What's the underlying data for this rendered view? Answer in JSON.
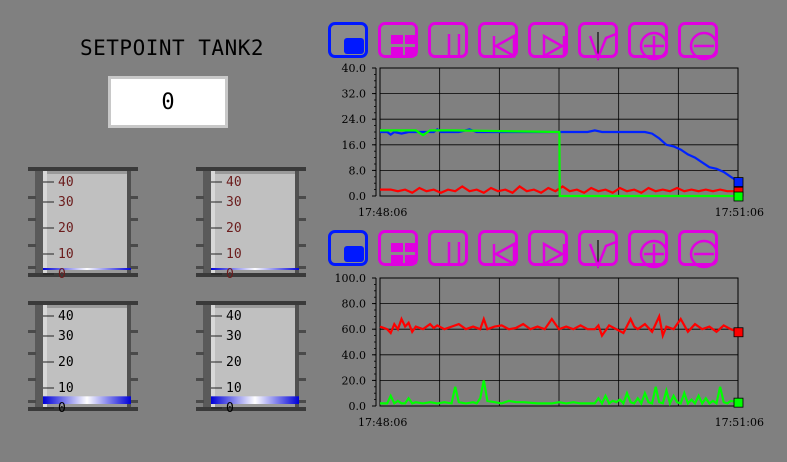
{
  "setpoint": {
    "title": "SETPOINT TANK2",
    "value": "0"
  },
  "tanks": [
    {
      "id": "tank-1",
      "labels": [
        "40",
        "30",
        "20",
        "10",
        "0"
      ],
      "level": 0.02
    },
    {
      "id": "tank-2",
      "labels": [
        "40",
        "30",
        "20",
        "10",
        "0"
      ],
      "level": 0.02
    },
    {
      "id": "tank-3",
      "labels": [
        "40",
        "30",
        "20",
        "10",
        "0"
      ],
      "level": 0.08
    },
    {
      "id": "tank-4",
      "labels": [
        "40",
        "30",
        "20",
        "10",
        "0"
      ],
      "level": 0.08
    }
  ],
  "toolbar_icons": [
    "stop-icon",
    "grid-icon",
    "pause-icon",
    "skip-back-icon",
    "skip-forward-icon",
    "cursor-icon",
    "zoom-in-icon",
    "zoom-out-icon"
  ],
  "colors": {
    "magenta": "#e000e0",
    "blue": "#0018ff",
    "red": "#ff0000",
    "green": "#00ff00",
    "trend_blue": "#0022ff"
  },
  "chart_data": [
    {
      "type": "line",
      "ylim": [
        0,
        40
      ],
      "yticks": [
        "40.0",
        "32.0",
        "24.0",
        "16.0",
        "8.0",
        "0.0"
      ],
      "x_start": "17:48:06",
      "x_end": "17:51:06",
      "series": [
        {
          "color": "#0022ff",
          "x": [
            0,
            2,
            3,
            4,
            6,
            8,
            9,
            10,
            12,
            13,
            14,
            15,
            16,
            17,
            18,
            20,
            22,
            25,
            27,
            30,
            33,
            36,
            39,
            40,
            42,
            45,
            47,
            50,
            52,
            55,
            58,
            60,
            62,
            64,
            66,
            68,
            70,
            72,
            74,
            76,
            78,
            80,
            82,
            84,
            86,
            88,
            90,
            92,
            94,
            96,
            98,
            100
          ],
          "y": [
            20,
            20,
            19.2,
            20,
            19.5,
            20,
            20,
            20,
            20,
            20,
            20,
            20,
            20.8,
            20,
            20,
            20,
            20,
            20.8,
            20,
            20,
            20,
            20,
            20,
            20,
            20,
            20,
            20,
            20,
            20,
            20,
            20,
            20.5,
            20,
            20,
            20,
            20,
            20,
            20,
            20,
            19.5,
            18,
            16,
            15.5,
            14.5,
            13,
            12,
            10.5,
            9,
            8.5,
            7.5,
            6,
            4.5
          ]
        },
        {
          "color": "#ff0000",
          "x": [
            0,
            3,
            5,
            7,
            9,
            11,
            13,
            15,
            17,
            19,
            21,
            23,
            25,
            27,
            29,
            31,
            33,
            35,
            37,
            39,
            41,
            43,
            45,
            47,
            49,
            51,
            53,
            55,
            57,
            59,
            61,
            63,
            65,
            67,
            69,
            71,
            73,
            75,
            77,
            79,
            81,
            83,
            85,
            87,
            89,
            91,
            93,
            95,
            97,
            100
          ],
          "y": [
            2,
            2,
            1.5,
            2,
            1,
            2.5,
            1.5,
            2,
            1,
            2,
            1.5,
            3,
            1.5,
            2,
            1,
            2.5,
            1.5,
            2,
            1,
            3,
            1.5,
            2,
            1,
            2.5,
            1.5,
            3,
            1.5,
            2,
            1,
            2.5,
            1.5,
            2,
            1,
            2.5,
            1.5,
            2,
            1,
            2.5,
            1.5,
            2,
            1.5,
            2.5,
            1.5,
            2,
            1.5,
            2,
            1.5,
            2,
            1.5,
            1.5
          ]
        },
        {
          "color": "#00ff00",
          "x": [
            0,
            10,
            12,
            14,
            20,
            50,
            50.1,
            50.2,
            100
          ],
          "y": [
            20.5,
            20.5,
            19,
            20.5,
            20.5,
            20,
            20,
            0,
            0
          ]
        }
      ]
    },
    {
      "type": "line",
      "ylim": [
        0,
        100
      ],
      "yticks": [
        "100.0",
        "80.0",
        "60.0",
        "40.0",
        "20.0",
        "0.0"
      ],
      "x_start": "17:48:06",
      "x_end": "17:51:06",
      "series": [
        {
          "color": "#ff0000",
          "x": [
            0,
            2,
            3,
            4,
            5,
            6,
            7,
            8,
            9,
            10,
            12,
            14,
            15,
            16,
            18,
            20,
            22,
            24,
            26,
            28,
            29,
            30,
            32,
            34,
            36,
            38,
            40,
            42,
            44,
            46,
            48,
            50,
            52,
            54,
            56,
            58,
            60,
            61,
            62,
            64,
            66,
            68,
            70,
            71,
            72,
            74,
            76,
            78,
            79,
            80,
            82,
            84,
            86,
            88,
            90,
            92,
            94,
            96,
            98,
            100
          ],
          "y": [
            62,
            60,
            57,
            64,
            60,
            68,
            62,
            65,
            58,
            62,
            60,
            64,
            61,
            63,
            60,
            62,
            64,
            60,
            62,
            60,
            68,
            60,
            62,
            63,
            60,
            61,
            64,
            60,
            62,
            60,
            68,
            60,
            62,
            60,
            63,
            60,
            60,
            63,
            55,
            63,
            60,
            57,
            68,
            62,
            60,
            64,
            58,
            70,
            55,
            62,
            60,
            68,
            58,
            64,
            60,
            62,
            58,
            63,
            60,
            58
          ]
        },
        {
          "color": "#00ff00",
          "x": [
            0,
            2,
            3,
            4,
            5,
            6,
            7,
            8,
            9,
            10,
            12,
            14,
            16,
            18,
            20,
            21,
            22,
            24,
            26,
            27,
            28,
            29,
            30,
            32,
            34,
            36,
            38,
            40,
            44,
            48,
            50,
            52,
            54,
            56,
            58,
            60,
            61,
            62,
            63,
            64,
            65,
            66,
            67,
            68,
            69,
            70,
            71,
            72,
            73,
            74,
            75,
            76,
            77,
            78,
            79,
            80,
            81,
            82,
            83,
            84,
            85,
            86,
            87,
            88,
            89,
            90,
            91,
            92,
            93,
            94,
            95,
            96,
            97,
            98,
            100
          ],
          "y": [
            2,
            2,
            8,
            2,
            4,
            2,
            2,
            6,
            2,
            3,
            2,
            3,
            2,
            3,
            2,
            15,
            3,
            2,
            3,
            2,
            6,
            20,
            4,
            3,
            2,
            4,
            3,
            3,
            2,
            2,
            3,
            2,
            3,
            2,
            2,
            2,
            6,
            2,
            8,
            2,
            4,
            3,
            5,
            2,
            10,
            3,
            2,
            6,
            2,
            10,
            3,
            2,
            15,
            3,
            2,
            12,
            2,
            8,
            3,
            2,
            10,
            2,
            5,
            2,
            8,
            2,
            6,
            2,
            4,
            2,
            15,
            3,
            2,
            4,
            3
          ]
        }
      ]
    }
  ]
}
